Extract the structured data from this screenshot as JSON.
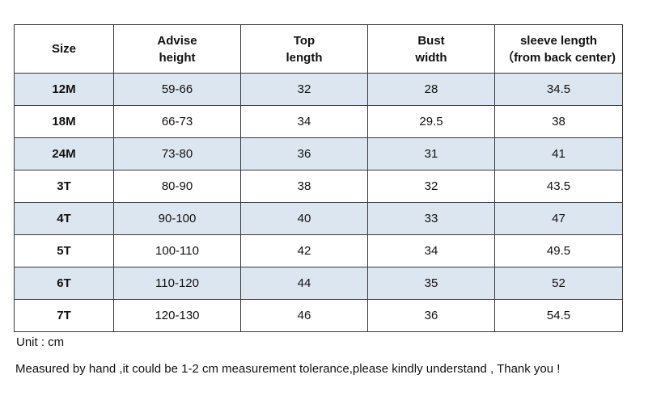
{
  "table": {
    "headers": [
      [
        "Size"
      ],
      [
        "Advise",
        "height"
      ],
      [
        "Top",
        "length"
      ],
      [
        "Bust",
        "width"
      ],
      [
        "sleeve length",
        "（from back center)"
      ]
    ],
    "rows": [
      [
        "12M",
        "59-66",
        "32",
        "28",
        "34.5"
      ],
      [
        "18M",
        "66-73",
        "34",
        "29.5",
        "38"
      ],
      [
        "24M",
        "73-80",
        "36",
        "31",
        "41"
      ],
      [
        "3T",
        "80-90",
        "38",
        "32",
        "43.5"
      ],
      [
        "4T",
        "90-100",
        "40",
        "33",
        "47"
      ],
      [
        "5T",
        "100-110",
        "42",
        "34",
        "49.5"
      ],
      [
        "6T",
        "110-120",
        "44",
        "35",
        "52"
      ],
      [
        "7T",
        "120-130",
        "46",
        "36",
        "54.5"
      ]
    ]
  },
  "notes": {
    "unit": "Unit : cm",
    "measure": "Measured by hand ,it could be 1-2 cm measurement tolerance,please kindly understand , Thank you !"
  },
  "colors": {
    "shaded_row": "#dce6f1",
    "border": "#3a3a3a"
  }
}
